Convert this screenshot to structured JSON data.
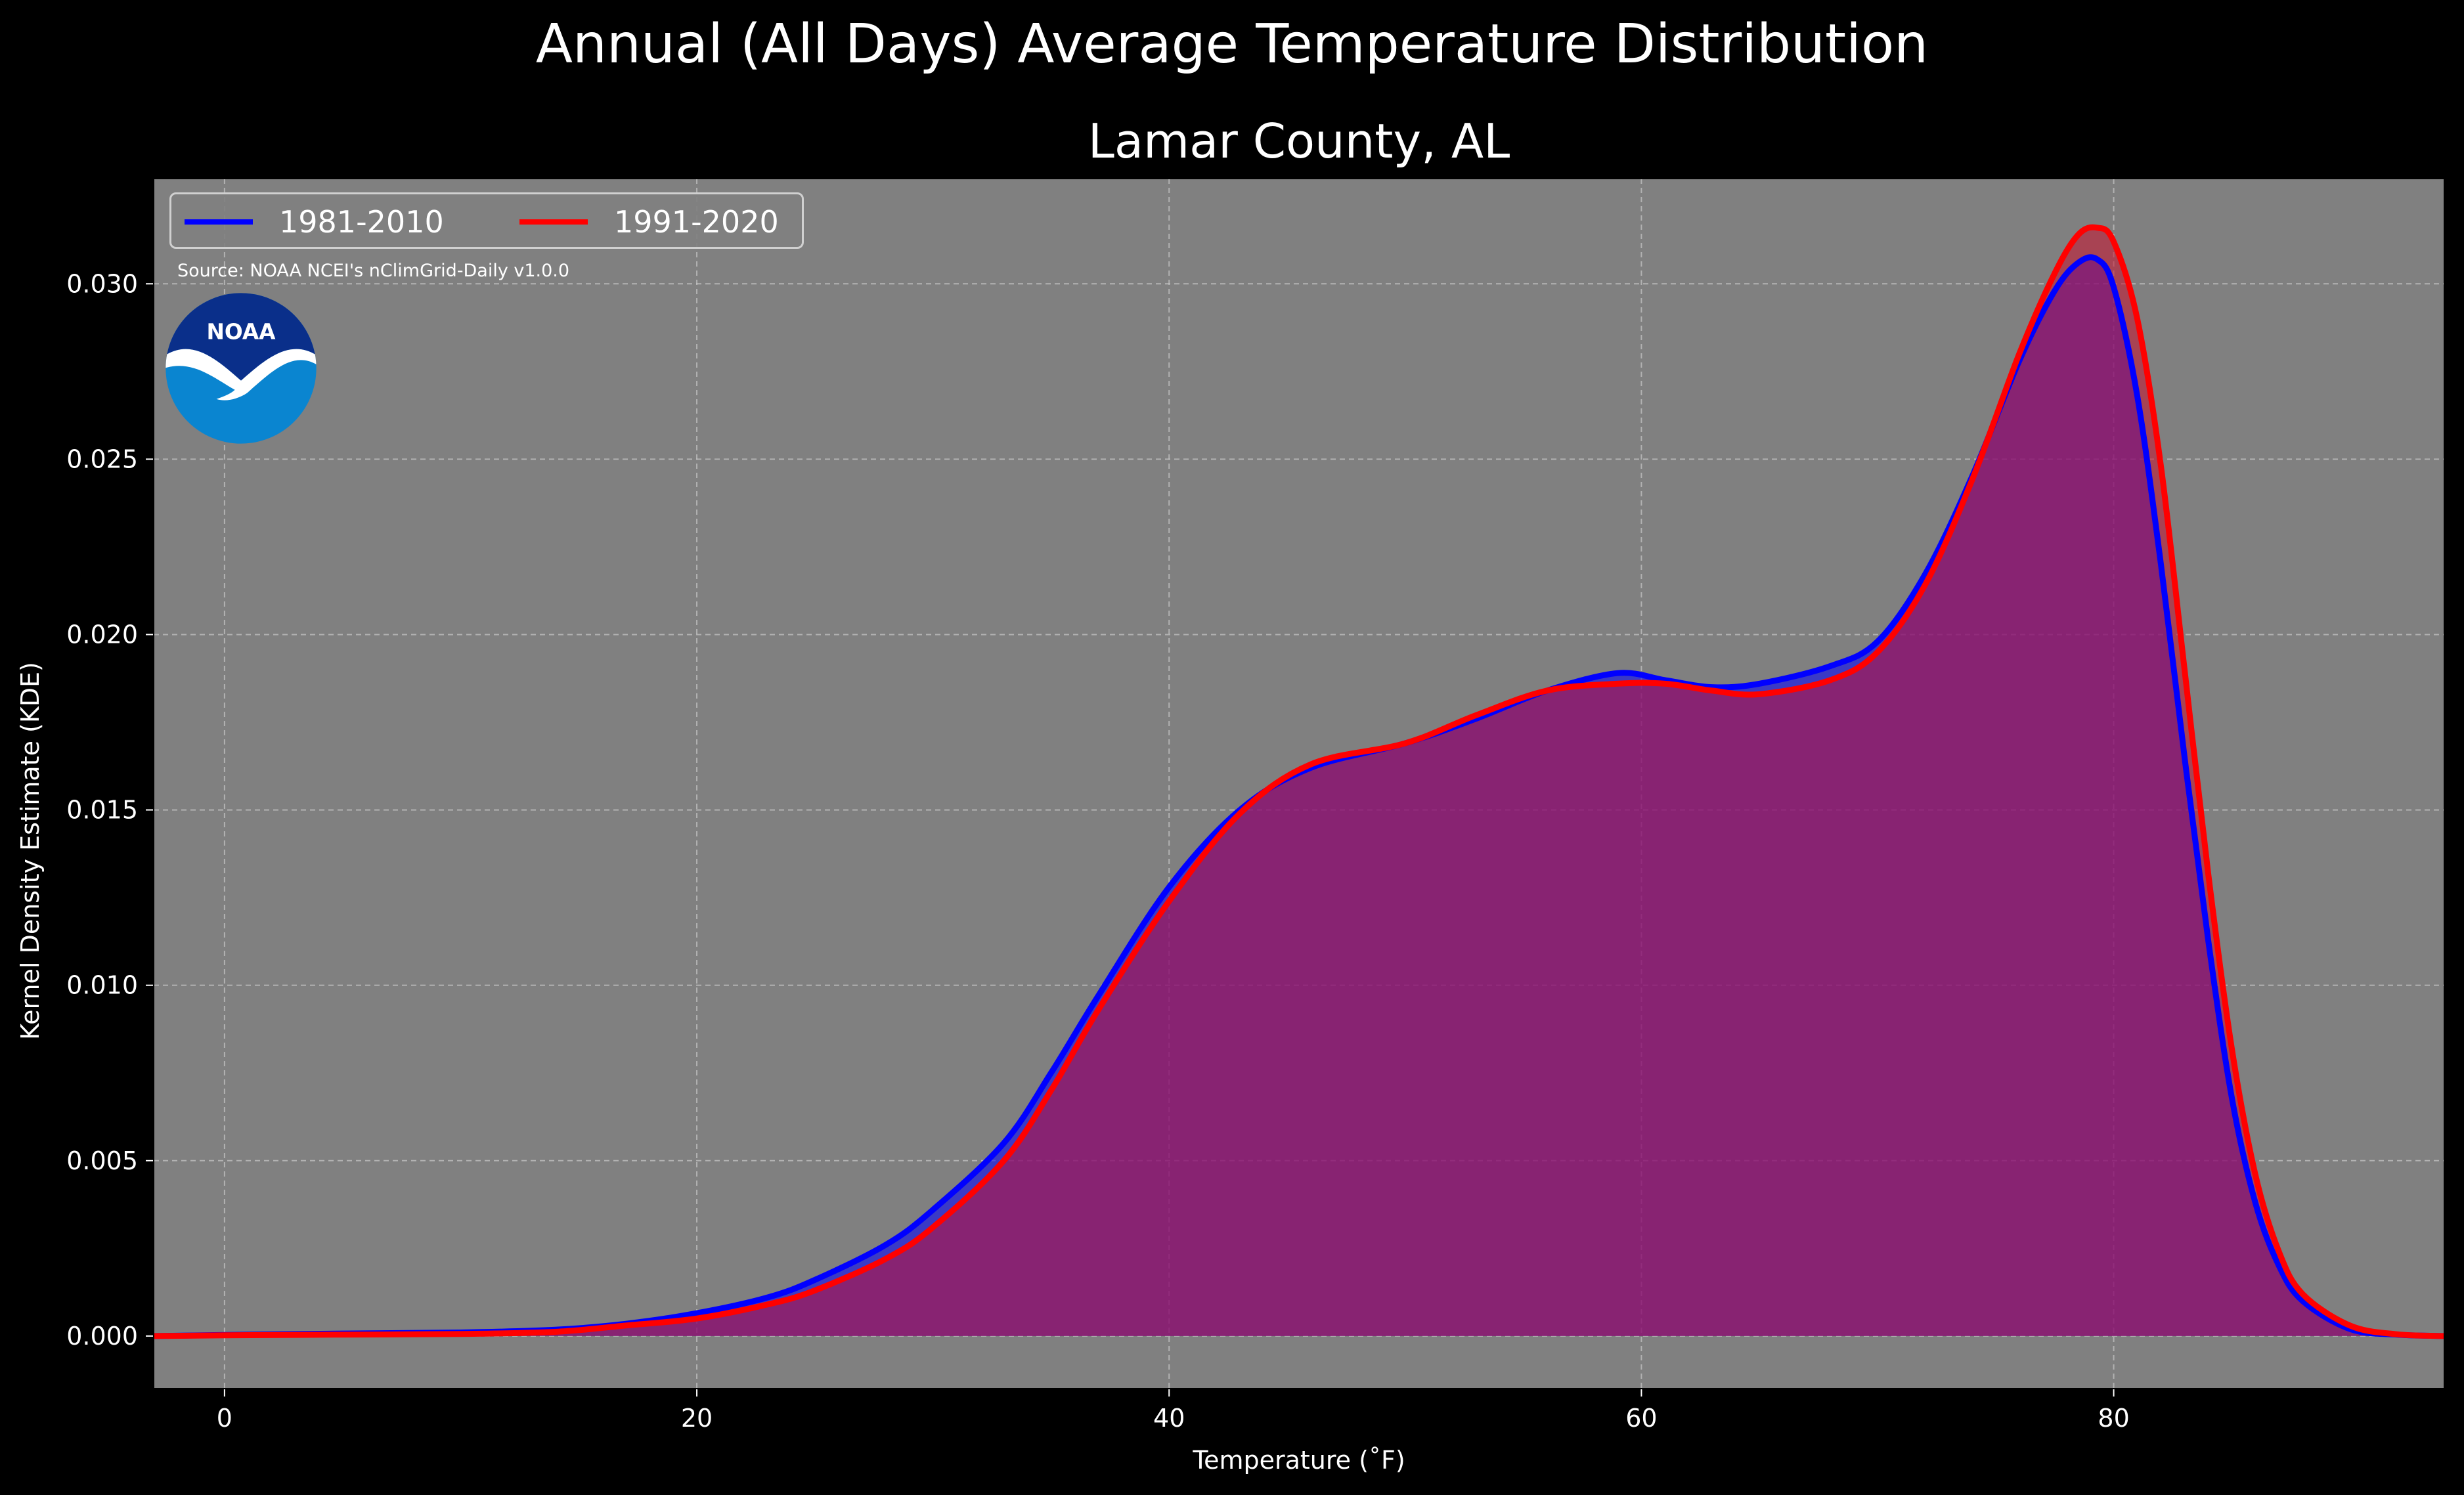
{
  "suptitle": "Annual (All Days) Average Temperature Distribution",
  "source": "Source: NOAA NCEI's nClimGrid-Daily v1.0.0",
  "logo": {
    "icon": "noaa-logo",
    "text": "NOAA"
  },
  "colors": {
    "background": "#000000",
    "plot_bg": "#808080",
    "series_1": "#0000ff",
    "series_2": "#ff0000",
    "fill_overlap": "#9e1f5e"
  },
  "chart_data": {
    "type": "area",
    "title": "Lamar County, AL",
    "xlabel": "Temperature ($^\\circ$F)",
    "xlabel_display": "Temperature (˚F)",
    "ylabel": "Kernel Density Estimate (KDE)",
    "xlim": [
      -3,
      94
    ],
    "ylim": [
      -0.0015,
      0.033
    ],
    "xticks": [
      0,
      20,
      40,
      60,
      80
    ],
    "xtick_labels": [
      "0",
      "20",
      "40",
      "60",
      "80"
    ],
    "yticks": [
      0.0,
      0.005,
      0.01,
      0.015,
      0.02,
      0.025,
      0.03
    ],
    "ytick_labels": [
      "0.000",
      "0.005",
      "0.010",
      "0.015",
      "0.020",
      "0.025",
      "0.030"
    ],
    "grid": true,
    "legend_position": "top-left",
    "series": [
      {
        "name": "1981-2010",
        "color": "#0000ff",
        "x": [
          -3,
          0,
          5,
          10,
          14,
          17,
          20,
          23,
          25,
          28,
          30,
          33,
          35,
          37,
          40,
          43,
          46,
          50,
          53,
          56,
          59,
          61,
          63,
          65,
          68,
          70,
          72,
          74,
          76,
          77.5,
          78.5,
          79.3,
          80,
          81,
          82,
          83,
          84,
          85,
          86,
          87,
          88,
          90,
          92,
          94
        ],
        "y": [
          0,
          3e-05,
          7e-05,
          0.0001,
          0.00018,
          0.00035,
          0.00065,
          0.0011,
          0.0016,
          0.0026,
          0.0036,
          0.0055,
          0.0075,
          0.0097,
          0.0128,
          0.015,
          0.0162,
          0.0169,
          0.0176,
          0.0184,
          0.0189,
          0.0187,
          0.0185,
          0.0186,
          0.0191,
          0.0198,
          0.0217,
          0.0245,
          0.0278,
          0.0298,
          0.0306,
          0.0307,
          0.0299,
          0.0268,
          0.022,
          0.0165,
          0.0113,
          0.0068,
          0.0038,
          0.002,
          0.001,
          0.0002,
          4e-05,
          0
        ]
      },
      {
        "name": "1991-2020",
        "color": "#ff0000",
        "x": [
          -3,
          0,
          5,
          10,
          14,
          17,
          20,
          23,
          25,
          28,
          30,
          33,
          35,
          37,
          40,
          43,
          46,
          50,
          53,
          56,
          59,
          61,
          63,
          65,
          68,
          70,
          72,
          74,
          76,
          77.5,
          78.5,
          79.3,
          80,
          81,
          82,
          83,
          84,
          85,
          86,
          87,
          88,
          90,
          92,
          94
        ],
        "y": [
          0,
          2e-05,
          4e-05,
          6e-05,
          0.00012,
          0.0003,
          0.0005,
          0.0009,
          0.0013,
          0.0022,
          0.0031,
          0.005,
          0.007,
          0.0093,
          0.0124,
          0.0149,
          0.0163,
          0.0169,
          0.0177,
          0.0184,
          0.0186,
          0.0186,
          0.0184,
          0.0183,
          0.0187,
          0.0195,
          0.0214,
          0.0244,
          0.028,
          0.0303,
          0.0314,
          0.0316,
          0.0312,
          0.029,
          0.0248,
          0.019,
          0.0132,
          0.0082,
          0.0046,
          0.0024,
          0.0012,
          0.0003,
          5e-05,
          0
        ]
      }
    ]
  }
}
